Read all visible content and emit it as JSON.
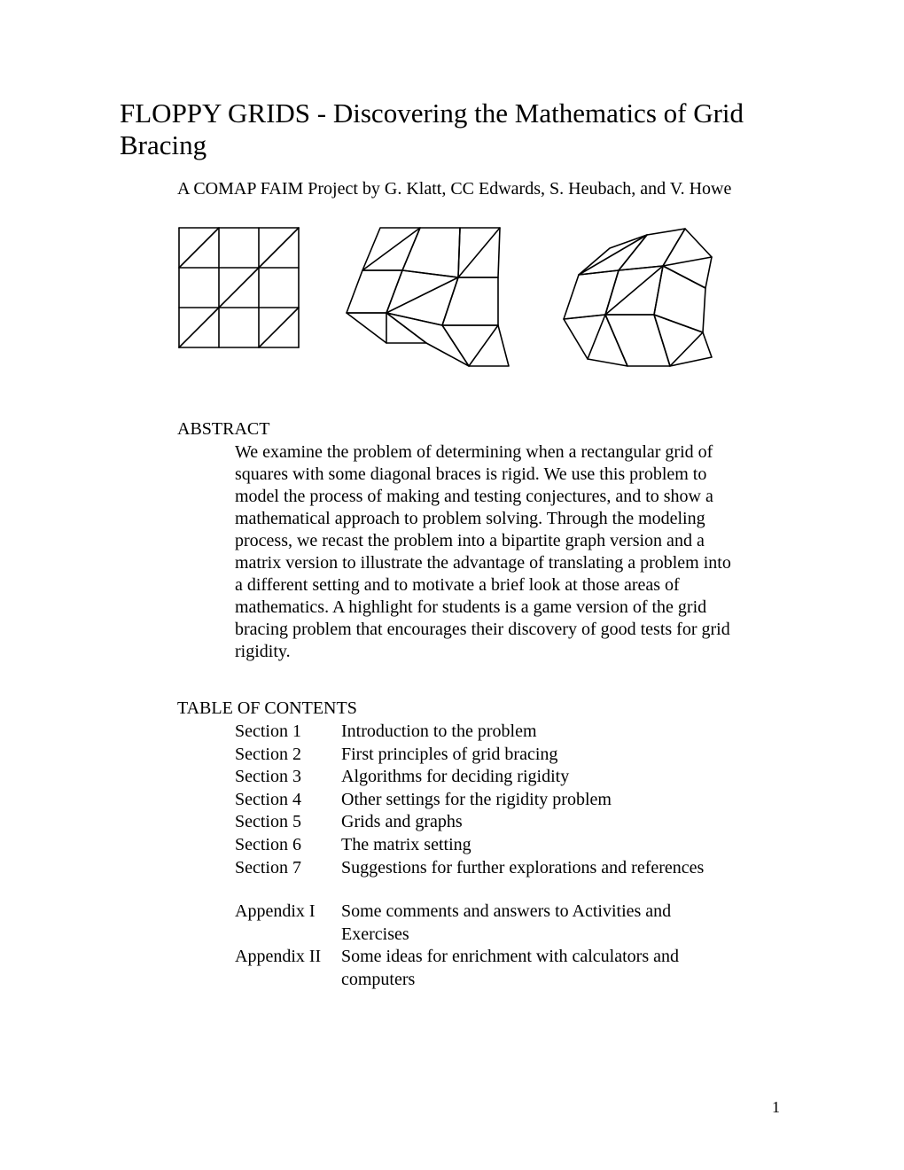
{
  "title": "FLOPPY GRIDS - Discovering the Mathematics of Grid Bracing",
  "subtitle": "A COMAP FAIM Project by G. Klatt, CC Edwards, S. Heubach, and V. Howe",
  "abstract": {
    "heading": "ABSTRACT",
    "body": "We examine the problem of determining when a rectangular grid of squares with some diagonal braces is rigid. We use this problem to model the process of making and testing conjectures, and to show a mathematical approach to problem solving. Through the modeling process, we recast the problem into a bipartite graph  version and a matrix version to illustrate the advantage of  translating a problem into a different setting and to motivate a brief look at those areas of mathematics. A highlight for students is a game version of the grid bracing problem that encourages their discovery of good tests for grid rigidity."
  },
  "toc": {
    "heading": "TABLE OF CONTENTS",
    "sections": [
      {
        "label": "Section 1",
        "desc": "Introduction to the problem"
      },
      {
        "label": "Section 2",
        "desc": "First principles of grid bracing"
      },
      {
        "label": "Section 3",
        "desc": "Algorithms for deciding rigidity"
      },
      {
        "label": "Section 4",
        "desc": "Other settings for the rigidity problem"
      },
      {
        "label": "Section 5",
        "desc": "Grids and graphs"
      },
      {
        "label": "Section 6",
        "desc": "The matrix setting"
      },
      {
        "label": "Section 7",
        "desc": "Suggestions for further explorations and references"
      }
    ],
    "appendices": [
      {
        "label": "Appendix I",
        "desc": "Some comments and answers to Activities and Exercises"
      },
      {
        "label": "Appendix II",
        "desc": "Some ideas for enrichment with calculators and computers"
      }
    ]
  },
  "page_number": "1",
  "figures": {
    "stroke_color": "#000000",
    "stroke_width": 1.6,
    "cell_size": 45,
    "fig1": {
      "type": "grid",
      "rows": 3,
      "cols": 3,
      "braces": [
        [
          0,
          0
        ],
        [
          0,
          2
        ],
        [
          1,
          1
        ],
        [
          2,
          0
        ],
        [
          2,
          2
        ]
      ]
    },
    "fig2": {
      "type": "sheared-grid"
    },
    "fig3": {
      "type": "rotated-grid"
    }
  }
}
